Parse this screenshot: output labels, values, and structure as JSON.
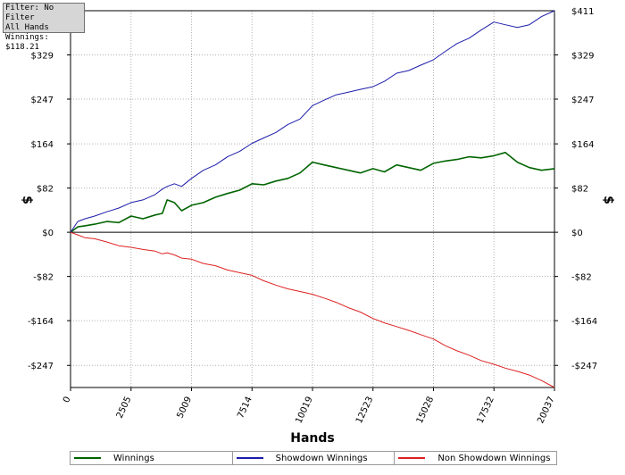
{
  "info_box": {
    "filter": "Filter: No Filter",
    "hands": "All Hands",
    "winnings": "Winnings: $118.21"
  },
  "chart_data": {
    "type": "line",
    "xlabel": "Hands",
    "ylabel_left": "$",
    "ylabel_right": "$",
    "xlim": [
      0,
      20037
    ],
    "ylim": [
      -288,
      411
    ],
    "x_ticks": [
      0,
      2505,
      5009,
      7514,
      10019,
      12523,
      15028,
      17532,
      20037
    ],
    "y_ticks": [
      329,
      247,
      164,
      82,
      0,
      -82,
      -164,
      -247
    ],
    "y_tick_labels": [
      "$329",
      "$247",
      "$164",
      "$82",
      "$0",
      "-$82",
      "-$164",
      "-$247"
    ],
    "y_top_label": "$411",
    "grid": true,
    "legend_position": "bottom",
    "series": [
      {
        "name": "Winnings",
        "color": "#006400",
        "x": [
          0,
          300,
          600,
          1000,
          1500,
          2000,
          2505,
          3000,
          3500,
          3800,
          4000,
          4300,
          4600,
          5009,
          5500,
          6000,
          6500,
          7000,
          7514,
          8000,
          8500,
          9000,
          9500,
          10019,
          10500,
          11000,
          11500,
          12000,
          12523,
          13000,
          13500,
          14000,
          14500,
          15028,
          15500,
          16000,
          16500,
          17000,
          17532,
          18000,
          18500,
          19000,
          19500,
          20037
        ],
        "y": [
          0,
          10,
          12,
          15,
          20,
          18,
          30,
          25,
          32,
          35,
          60,
          55,
          40,
          50,
          55,
          65,
          72,
          78,
          90,
          88,
          95,
          100,
          110,
          130,
          125,
          120,
          115,
          110,
          118,
          112,
          125,
          120,
          115,
          128,
          132,
          135,
          140,
          138,
          142,
          148,
          130,
          120,
          115,
          118
        ]
      },
      {
        "name": "Showdown Winnings",
        "color": "#1c1caa",
        "x": [
          0,
          300,
          600,
          1000,
          1500,
          2000,
          2505,
          3000,
          3500,
          3800,
          4000,
          4300,
          4600,
          5009,
          5500,
          6000,
          6500,
          7000,
          7514,
          8000,
          8500,
          9000,
          9500,
          10019,
          10500,
          11000,
          11500,
          12000,
          12523,
          13000,
          13500,
          14000,
          14500,
          15028,
          15500,
          16000,
          16500,
          17000,
          17532,
          18000,
          18500,
          19000,
          19500,
          20037
        ],
        "y": [
          0,
          20,
          25,
          30,
          38,
          45,
          55,
          60,
          70,
          80,
          85,
          90,
          85,
          100,
          115,
          125,
          140,
          150,
          165,
          175,
          185,
          200,
          210,
          235,
          245,
          255,
          260,
          265,
          270,
          280,
          295,
          300,
          310,
          320,
          335,
          350,
          360,
          375,
          390,
          385,
          380,
          385,
          400,
          411
        ]
      },
      {
        "name": "Non Showdown Winnings",
        "color": "#dd2222",
        "x": [
          0,
          300,
          600,
          1000,
          1500,
          2000,
          2505,
          3000,
          3500,
          3800,
          4000,
          4300,
          4600,
          5009,
          5500,
          6000,
          6500,
          7000,
          7514,
          8000,
          8500,
          9000,
          9500,
          10019,
          10500,
          11000,
          11500,
          12000,
          12523,
          13000,
          13500,
          14000,
          14500,
          15028,
          15500,
          16000,
          16500,
          17000,
          17532,
          18000,
          18500,
          19000,
          19500,
          20037
        ],
        "y": [
          0,
          -5,
          -10,
          -12,
          -18,
          -25,
          -28,
          -32,
          -35,
          -40,
          -38,
          -42,
          -48,
          -50,
          -58,
          -62,
          -70,
          -75,
          -80,
          -90,
          -98,
          -105,
          -110,
          -115,
          -122,
          -130,
          -140,
          -148,
          -160,
          -168,
          -175,
          -182,
          -190,
          -198,
          -210,
          -220,
          -228,
          -238,
          -245,
          -252,
          -258,
          -265,
          -275,
          -288
        ]
      }
    ]
  }
}
